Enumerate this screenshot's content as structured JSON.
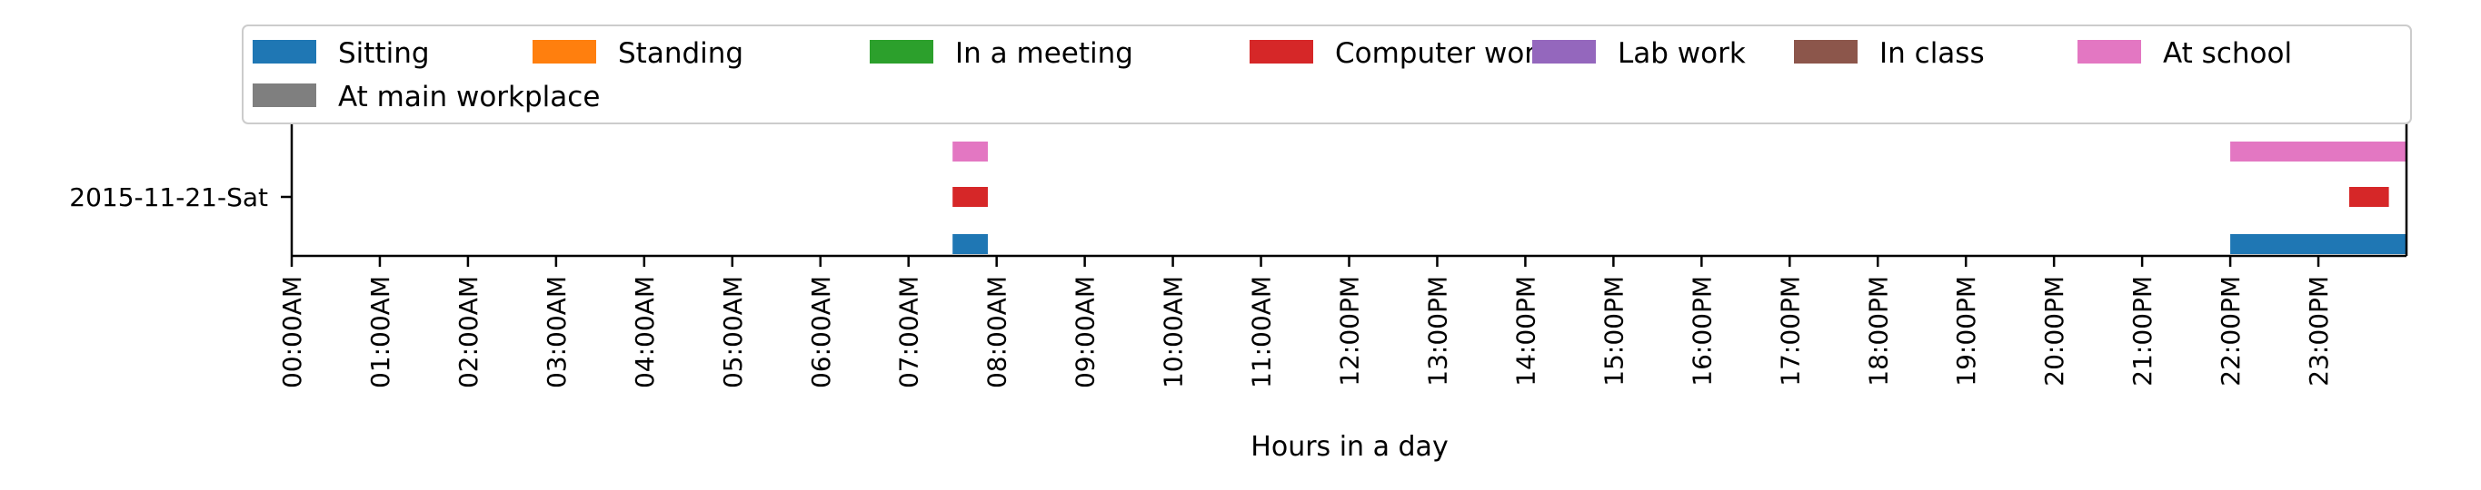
{
  "chart_data": {
    "type": "bar",
    "orientation": "horizontal-timeline",
    "title": "",
    "xlabel": "Hours in a day",
    "ylabel": "",
    "xlim": [
      0,
      24
    ],
    "categories": [
      "2015-11-21-Sat"
    ],
    "x_ticks": [
      "00:00AM",
      "01:00AM",
      "02:00AM",
      "03:00AM",
      "04:00AM",
      "05:00AM",
      "06:00AM",
      "07:00AM",
      "08:00AM",
      "09:00AM",
      "10:00AM",
      "11:00AM",
      "12:00PM",
      "13:00PM",
      "14:00PM",
      "15:00PM",
      "16:00PM",
      "17:00PM",
      "18:00PM",
      "19:00PM",
      "20:00PM",
      "21:00PM",
      "22:00PM",
      "23:00PM"
    ],
    "legend_position": "top",
    "grid": false,
    "series": [
      {
        "name": "Sitting",
        "color": "#1f77b4",
        "intervals": [
          [
            7.5,
            7.9
          ],
          [
            22.0,
            24.0
          ]
        ]
      },
      {
        "name": "Standing",
        "color": "#ff7f0e",
        "intervals": []
      },
      {
        "name": "In a meeting",
        "color": "#2ca02c",
        "intervals": []
      },
      {
        "name": "Computer work",
        "color": "#d62728",
        "intervals": [
          [
            7.5,
            7.9
          ],
          [
            23.35,
            23.8
          ]
        ]
      },
      {
        "name": "Lab work",
        "color": "#9467bd",
        "intervals": []
      },
      {
        "name": "In class",
        "color": "#8c564b",
        "intervals": []
      },
      {
        "name": "At school",
        "color": "#e377c2",
        "intervals": [
          [
            7.5,
            7.9
          ],
          [
            22.0,
            24.0
          ]
        ]
      },
      {
        "name": "At main workplace",
        "color": "#7f7f7f",
        "intervals": []
      }
    ]
  }
}
